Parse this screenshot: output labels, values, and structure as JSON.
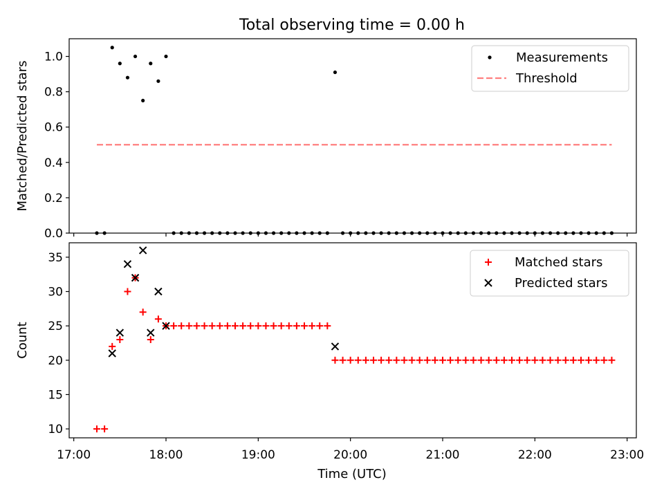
{
  "figure": {
    "title": "Total observing time = 0.00 h",
    "xlabel": "Time (UTC)",
    "x_ticks": [
      "17:00",
      "18:00",
      "19:00",
      "20:00",
      "21:00",
      "22:00",
      "23:00"
    ]
  },
  "colors": {
    "measurement": "#000000",
    "threshold": "#ff7f7f",
    "matched": "#ff0000",
    "predicted": "#000000"
  },
  "chart_data": [
    {
      "type": "scatter",
      "ylabel": "Matched/Predicted stars",
      "xlim": [
        "16:57",
        "23:06"
      ],
      "ylim": [
        0,
        1.1
      ],
      "y_ticks": [
        "0.0",
        "0.2",
        "0.4",
        "0.6",
        "0.8",
        "1.0"
      ],
      "legend_position": "top-right",
      "series": [
        {
          "name": "Measurements",
          "marker": "dot",
          "points": [
            [
              "17:15",
              0
            ],
            [
              "17:20",
              0
            ],
            [
              "17:25",
              1.05
            ],
            [
              "17:30",
              0.96
            ],
            [
              "17:35",
              0.88
            ],
            [
              "17:40",
              1.0
            ],
            [
              "17:45",
              0.75
            ],
            [
              "17:50",
              0.96
            ],
            [
              "17:55",
              0.86
            ],
            [
              "18:00",
              1.0
            ],
            [
              "18:05",
              0
            ],
            [
              "18:10",
              0
            ],
            [
              "18:15",
              0
            ],
            [
              "18:20",
              0
            ],
            [
              "18:25",
              0
            ],
            [
              "18:30",
              0
            ],
            [
              "18:35",
              0
            ],
            [
              "18:40",
              0
            ],
            [
              "18:45",
              0
            ],
            [
              "18:50",
              0
            ],
            [
              "18:55",
              0
            ],
            [
              "19:00",
              0
            ],
            [
              "19:05",
              0
            ],
            [
              "19:10",
              0
            ],
            [
              "19:15",
              0
            ],
            [
              "19:20",
              0
            ],
            [
              "19:25",
              0
            ],
            [
              "19:30",
              0
            ],
            [
              "19:35",
              0
            ],
            [
              "19:40",
              0
            ],
            [
              "19:45",
              0
            ],
            [
              "19:50",
              0.91
            ],
            [
              "19:55",
              0
            ],
            [
              "20:00",
              0
            ],
            [
              "20:05",
              0
            ],
            [
              "20:10",
              0
            ],
            [
              "20:15",
              0
            ],
            [
              "20:20",
              0
            ],
            [
              "20:25",
              0
            ],
            [
              "20:30",
              0
            ],
            [
              "20:35",
              0
            ],
            [
              "20:40",
              0
            ],
            [
              "20:45",
              0
            ],
            [
              "20:50",
              0
            ],
            [
              "20:55",
              0
            ],
            [
              "21:00",
              0
            ],
            [
              "21:05",
              0
            ],
            [
              "21:10",
              0
            ],
            [
              "21:15",
              0
            ],
            [
              "21:20",
              0
            ],
            [
              "21:25",
              0
            ],
            [
              "21:30",
              0
            ],
            [
              "21:35",
              0
            ],
            [
              "21:40",
              0
            ],
            [
              "21:45",
              0
            ],
            [
              "21:50",
              0
            ],
            [
              "21:55",
              0
            ],
            [
              "22:00",
              0
            ],
            [
              "22:05",
              0
            ],
            [
              "22:10",
              0
            ],
            [
              "22:15",
              0
            ],
            [
              "22:20",
              0
            ],
            [
              "22:25",
              0
            ],
            [
              "22:30",
              0
            ],
            [
              "22:35",
              0
            ],
            [
              "22:40",
              0
            ],
            [
              "22:45",
              0
            ],
            [
              "22:50",
              0
            ]
          ]
        },
        {
          "name": "Threshold",
          "marker": "dashed-line",
          "points": [
            [
              "17:15",
              0.5
            ],
            [
              "22:50",
              0.5
            ]
          ]
        }
      ]
    },
    {
      "type": "scatter",
      "ylabel": "Count",
      "xlim": [
        "16:57",
        "23:06"
      ],
      "ylim": [
        8.7,
        37.1
      ],
      "y_ticks": [
        "10",
        "15",
        "20",
        "25",
        "30",
        "35"
      ],
      "legend_position": "top-right",
      "series": [
        {
          "name": "Matched stars",
          "marker": "plus",
          "points": [
            [
              "17:15",
              10
            ],
            [
              "17:20",
              10
            ],
            [
              "17:25",
              22
            ],
            [
              "17:30",
              23
            ],
            [
              "17:35",
              30
            ],
            [
              "17:40",
              32
            ],
            [
              "17:45",
              27
            ],
            [
              "17:50",
              23
            ],
            [
              "17:55",
              26
            ],
            [
              "18:00",
              25
            ],
            [
              "18:05",
              25
            ],
            [
              "18:10",
              25
            ],
            [
              "18:15",
              25
            ],
            [
              "18:20",
              25
            ],
            [
              "18:25",
              25
            ],
            [
              "18:30",
              25
            ],
            [
              "18:35",
              25
            ],
            [
              "18:40",
              25
            ],
            [
              "18:45",
              25
            ],
            [
              "18:50",
              25
            ],
            [
              "18:55",
              25
            ],
            [
              "19:00",
              25
            ],
            [
              "19:05",
              25
            ],
            [
              "19:10",
              25
            ],
            [
              "19:15",
              25
            ],
            [
              "19:20",
              25
            ],
            [
              "19:25",
              25
            ],
            [
              "19:30",
              25
            ],
            [
              "19:35",
              25
            ],
            [
              "19:40",
              25
            ],
            [
              "19:45",
              25
            ],
            [
              "19:50",
              20
            ],
            [
              "19:55",
              20
            ],
            [
              "20:00",
              20
            ],
            [
              "20:05",
              20
            ],
            [
              "20:10",
              20
            ],
            [
              "20:15",
              20
            ],
            [
              "20:20",
              20
            ],
            [
              "20:25",
              20
            ],
            [
              "20:30",
              20
            ],
            [
              "20:35",
              20
            ],
            [
              "20:40",
              20
            ],
            [
              "20:45",
              20
            ],
            [
              "20:50",
              20
            ],
            [
              "20:55",
              20
            ],
            [
              "21:00",
              20
            ],
            [
              "21:05",
              20
            ],
            [
              "21:10",
              20
            ],
            [
              "21:15",
              20
            ],
            [
              "21:20",
              20
            ],
            [
              "21:25",
              20
            ],
            [
              "21:30",
              20
            ],
            [
              "21:35",
              20
            ],
            [
              "21:40",
              20
            ],
            [
              "21:45",
              20
            ],
            [
              "21:50",
              20
            ],
            [
              "21:55",
              20
            ],
            [
              "22:00",
              20
            ],
            [
              "22:05",
              20
            ],
            [
              "22:10",
              20
            ],
            [
              "22:15",
              20
            ],
            [
              "22:20",
              20
            ],
            [
              "22:25",
              20
            ],
            [
              "22:30",
              20
            ],
            [
              "22:35",
              20
            ],
            [
              "22:40",
              20
            ],
            [
              "22:45",
              20
            ],
            [
              "22:50",
              20
            ]
          ]
        },
        {
          "name": "Predicted stars",
          "marker": "x",
          "points": [
            [
              "17:25",
              21
            ],
            [
              "17:30",
              24
            ],
            [
              "17:35",
              34
            ],
            [
              "17:40",
              32
            ],
            [
              "17:45",
              36
            ],
            [
              "17:50",
              24
            ],
            [
              "17:55",
              30
            ],
            [
              "18:00",
              25
            ],
            [
              "19:50",
              22
            ]
          ]
        }
      ]
    }
  ]
}
